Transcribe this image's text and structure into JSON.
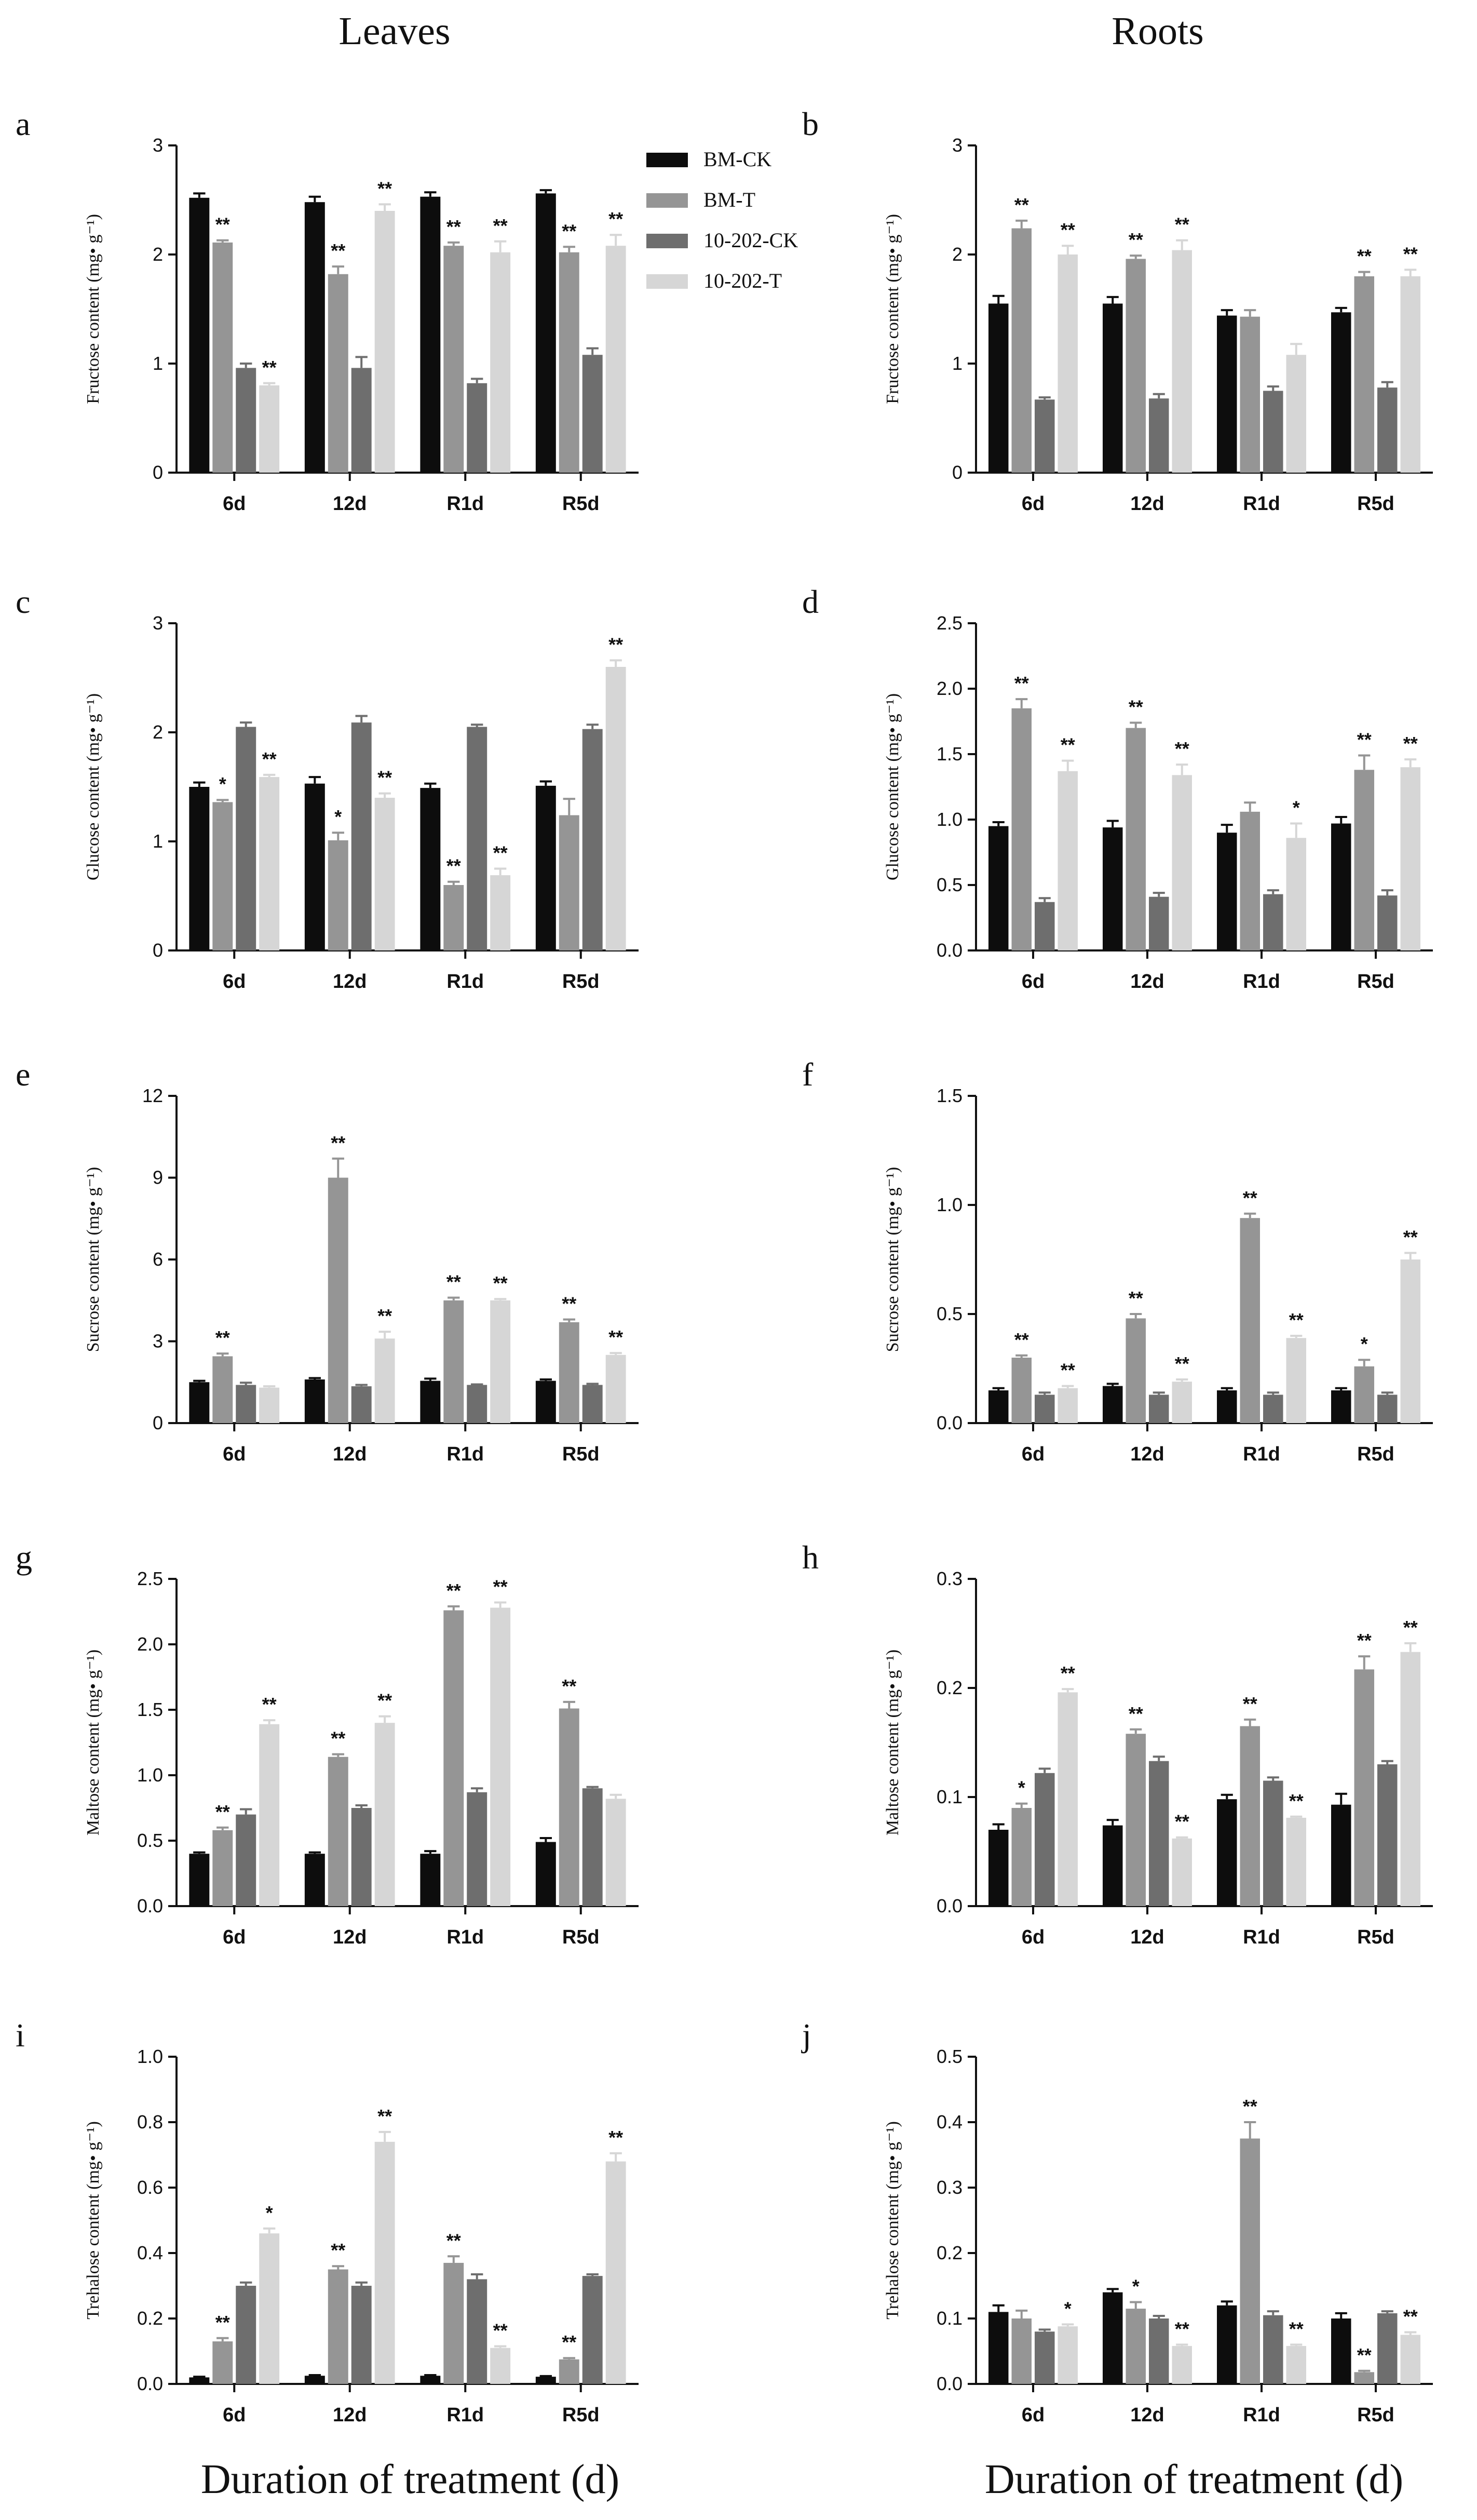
{
  "column_headers": {
    "left": "Leaves",
    "right": "Roots"
  },
  "x_axis_title": "Duration of treatment (d)",
  "colors": {
    "BM-CK": "#0d0d0d",
    "BM-T": "#959595",
    "10-202-CK": "#6e6e6e",
    "10-202-T": "#d6d6d6"
  },
  "chart_data": [
    {
      "panel": "a",
      "type": "bar",
      "organ": "Leaves",
      "ylabel": "Fructose content (mg• g⁻¹)",
      "ylim": [
        0,
        3
      ],
      "yticks": [
        "0",
        "1",
        "2",
        "3"
      ],
      "categories": [
        "6d",
        "12d",
        "R1d",
        "R5d"
      ],
      "legend": [
        "BM-CK",
        "BM-T",
        "10-202-CK",
        "10-202-T"
      ],
      "series": [
        {
          "name": "BM-CK",
          "values": [
            2.52,
            2.48,
            2.53,
            2.56
          ],
          "errors": [
            0.04,
            0.05,
            0.04,
            0.03
          ],
          "sig": [
            "",
            "",
            "",
            ""
          ]
        },
        {
          "name": "BM-T",
          "values": [
            2.11,
            1.82,
            2.08,
            2.02
          ],
          "errors": [
            0.02,
            0.07,
            0.03,
            0.05
          ],
          "sig": [
            "**",
            "**",
            "**",
            "**"
          ]
        },
        {
          "name": "10-202-CK",
          "values": [
            0.96,
            0.96,
            0.82,
            1.08
          ],
          "errors": [
            0.04,
            0.1,
            0.04,
            0.06
          ],
          "sig": [
            "",
            "",
            "",
            ""
          ]
        },
        {
          "name": "10-202-T",
          "values": [
            0.8,
            2.4,
            2.02,
            2.08
          ],
          "errors": [
            0.02,
            0.06,
            0.1,
            0.1
          ],
          "sig": [
            "**",
            "**",
            "**",
            "**"
          ]
        }
      ]
    },
    {
      "panel": "b",
      "type": "bar",
      "organ": "Roots",
      "ylabel": "Fructose content (mg• g⁻¹)",
      "ylim": [
        0,
        3
      ],
      "yticks": [
        "0",
        "1",
        "2",
        "3"
      ],
      "categories": [
        "6d",
        "12d",
        "R1d",
        "R5d"
      ],
      "series": [
        {
          "name": "BM-CK",
          "values": [
            1.55,
            1.55,
            1.44,
            1.47
          ],
          "errors": [
            0.07,
            0.06,
            0.05,
            0.04
          ],
          "sig": [
            "",
            "",
            "",
            ""
          ]
        },
        {
          "name": "BM-T",
          "values": [
            2.24,
            1.96,
            1.43,
            1.8
          ],
          "errors": [
            0.07,
            0.03,
            0.06,
            0.04
          ],
          "sig": [
            "**",
            "**",
            "",
            "**"
          ]
        },
        {
          "name": "10-202-CK",
          "values": [
            0.67,
            0.68,
            0.75,
            0.78
          ],
          "errors": [
            0.02,
            0.04,
            0.04,
            0.05
          ],
          "sig": [
            "",
            "",
            "",
            ""
          ]
        },
        {
          "name": "10-202-T",
          "values": [
            2.0,
            2.04,
            1.08,
            1.8
          ],
          "errors": [
            0.08,
            0.09,
            0.1,
            0.06
          ],
          "sig": [
            "**",
            "**",
            "",
            "**"
          ]
        }
      ]
    },
    {
      "panel": "c",
      "type": "bar",
      "organ": "Leaves",
      "ylabel": "Glucose content (mg• g⁻¹)",
      "ylim": [
        0,
        3
      ],
      "yticks": [
        "0",
        "1",
        "2",
        "3"
      ],
      "categories": [
        "6d",
        "12d",
        "R1d",
        "R5d"
      ],
      "series": [
        {
          "name": "BM-CK",
          "values": [
            1.5,
            1.53,
            1.49,
            1.51
          ],
          "errors": [
            0.04,
            0.06,
            0.04,
            0.04
          ],
          "sig": [
            "",
            "",
            "",
            ""
          ]
        },
        {
          "name": "BM-T",
          "values": [
            1.36,
            1.01,
            0.6,
            1.24
          ],
          "errors": [
            0.02,
            0.07,
            0.03,
            0.15
          ],
          "sig": [
            "*",
            "*",
            "**",
            ""
          ]
        },
        {
          "name": "10-202-CK",
          "values": [
            2.05,
            2.09,
            2.05,
            2.03
          ],
          "errors": [
            0.04,
            0.06,
            0.02,
            0.04
          ],
          "sig": [
            "",
            "",
            "",
            ""
          ]
        },
        {
          "name": "10-202-T",
          "values": [
            1.59,
            1.4,
            0.69,
            2.6
          ],
          "errors": [
            0.02,
            0.04,
            0.06,
            0.06
          ],
          "sig": [
            "**",
            "**",
            "**",
            "**"
          ]
        }
      ]
    },
    {
      "panel": "d",
      "type": "bar",
      "organ": "Roots",
      "ylabel": "Glucose content (mg• g⁻¹)",
      "ylim": [
        0,
        2.5
      ],
      "yticks": [
        "0.0",
        "0.5",
        "1.0",
        "1.5",
        "2.0",
        "2.5"
      ],
      "categories": [
        "6d",
        "12d",
        "R1d",
        "R5d"
      ],
      "series": [
        {
          "name": "BM-CK",
          "values": [
            0.95,
            0.94,
            0.9,
            0.97
          ],
          "errors": [
            0.03,
            0.05,
            0.06,
            0.05
          ],
          "sig": [
            "",
            "",
            "",
            ""
          ]
        },
        {
          "name": "BM-T",
          "values": [
            1.85,
            1.7,
            1.06,
            1.38
          ],
          "errors": [
            0.07,
            0.04,
            0.07,
            0.11
          ],
          "sig": [
            "**",
            "**",
            "",
            "**"
          ]
        },
        {
          "name": "10-202-CK",
          "values": [
            0.37,
            0.41,
            0.43,
            0.42
          ],
          "errors": [
            0.03,
            0.03,
            0.03,
            0.04
          ],
          "sig": [
            "",
            "",
            "",
            ""
          ]
        },
        {
          "name": "10-202-T",
          "values": [
            1.37,
            1.34,
            0.86,
            1.4
          ],
          "errors": [
            0.08,
            0.08,
            0.11,
            0.06
          ],
          "sig": [
            "**",
            "**",
            "*",
            "**"
          ]
        }
      ]
    },
    {
      "panel": "e",
      "type": "bar",
      "organ": "Leaves",
      "ylabel": "Sucrose content (mg• g⁻¹)",
      "ylim": [
        0,
        12
      ],
      "yticks": [
        "0",
        "3",
        "6",
        "9",
        "12"
      ],
      "categories": [
        "6d",
        "12d",
        "R1d",
        "R5d"
      ],
      "series": [
        {
          "name": "BM-CK",
          "values": [
            1.5,
            1.6,
            1.55,
            1.55
          ],
          "errors": [
            0.05,
            0.05,
            0.08,
            0.05
          ],
          "sig": [
            "",
            "",
            "",
            ""
          ]
        },
        {
          "name": "BM-T",
          "values": [
            2.45,
            9.0,
            4.5,
            3.7
          ],
          "errors": [
            0.1,
            0.7,
            0.1,
            0.1
          ],
          "sig": [
            "**",
            "**",
            "**",
            "**"
          ]
        },
        {
          "name": "10-202-CK",
          "values": [
            1.4,
            1.35,
            1.4,
            1.4
          ],
          "errors": [
            0.08,
            0.05,
            0.02,
            0.04
          ],
          "sig": [
            "",
            "",
            "",
            ""
          ]
        },
        {
          "name": "10-202-T",
          "values": [
            1.3,
            3.1,
            4.5,
            2.5
          ],
          "errors": [
            0.05,
            0.25,
            0.05,
            0.07
          ],
          "sig": [
            "",
            "**",
            "**",
            "**"
          ]
        }
      ]
    },
    {
      "panel": "f",
      "type": "bar",
      "organ": "Roots",
      "ylabel": "Sucrose content (mg• g⁻¹)",
      "ylim": [
        0,
        1.5
      ],
      "yticks": [
        "0.0",
        "0.5",
        "1.0",
        "1.5"
      ],
      "categories": [
        "6d",
        "12d",
        "R1d",
        "R5d"
      ],
      "series": [
        {
          "name": "BM-CK",
          "values": [
            0.15,
            0.17,
            0.15,
            0.15
          ],
          "errors": [
            0.01,
            0.01,
            0.01,
            0.01
          ],
          "sig": [
            "",
            "",
            "",
            ""
          ]
        },
        {
          "name": "BM-T",
          "values": [
            0.3,
            0.48,
            0.94,
            0.26
          ],
          "errors": [
            0.01,
            0.02,
            0.02,
            0.03
          ],
          "sig": [
            "**",
            "**",
            "**",
            "*"
          ]
        },
        {
          "name": "10-202-CK",
          "values": [
            0.13,
            0.13,
            0.13,
            0.13
          ],
          "errors": [
            0.01,
            0.01,
            0.01,
            0.01
          ],
          "sig": [
            "",
            "",
            "",
            ""
          ]
        },
        {
          "name": "10-202-T",
          "values": [
            0.16,
            0.19,
            0.39,
            0.75
          ],
          "errors": [
            0.01,
            0.01,
            0.01,
            0.03
          ],
          "sig": [
            "**",
            "**",
            "**",
            "**"
          ]
        }
      ]
    },
    {
      "panel": "g",
      "type": "bar",
      "organ": "Leaves",
      "ylabel": "Maltose content (mg• g⁻¹)",
      "ylim": [
        0,
        2.5
      ],
      "yticks": [
        "0.0",
        "0.5",
        "1.0",
        "1.5",
        "2.0",
        "2.5"
      ],
      "categories": [
        "6d",
        "12d",
        "R1d",
        "R5d"
      ],
      "series": [
        {
          "name": "BM-CK",
          "values": [
            0.4,
            0.4,
            0.4,
            0.49
          ],
          "errors": [
            0.01,
            0.01,
            0.02,
            0.03
          ],
          "sig": [
            "",
            "",
            "",
            ""
          ]
        },
        {
          "name": "BM-T",
          "values": [
            0.58,
            1.14,
            2.26,
            1.51
          ],
          "errors": [
            0.02,
            0.02,
            0.03,
            0.05
          ],
          "sig": [
            "**",
            "**",
            "**",
            "**"
          ]
        },
        {
          "name": "10-202-CK",
          "values": [
            0.7,
            0.75,
            0.87,
            0.9
          ],
          "errors": [
            0.04,
            0.02,
            0.03,
            0.01
          ],
          "sig": [
            "",
            "",
            "",
            ""
          ]
        },
        {
          "name": "10-202-T",
          "values": [
            1.39,
            1.4,
            2.28,
            0.82
          ],
          "errors": [
            0.03,
            0.05,
            0.04,
            0.03
          ],
          "sig": [
            "**",
            "**",
            "**",
            ""
          ]
        }
      ]
    },
    {
      "panel": "h",
      "type": "bar",
      "organ": "Roots",
      "ylabel": "Maltose content (mg• g⁻¹)",
      "ylim": [
        0,
        0.3
      ],
      "yticks": [
        "0.0",
        "0.1",
        "0.2",
        "0.3"
      ],
      "categories": [
        "6d",
        "12d",
        "R1d",
        "R5d"
      ],
      "series": [
        {
          "name": "BM-CK",
          "values": [
            0.07,
            0.074,
            0.098,
            0.093
          ],
          "errors": [
            0.005,
            0.005,
            0.004,
            0.01
          ],
          "sig": [
            "",
            "",
            "",
            ""
          ]
        },
        {
          "name": "BM-T",
          "values": [
            0.09,
            0.158,
            0.165,
            0.217
          ],
          "errors": [
            0.004,
            0.004,
            0.006,
            0.012
          ],
          "sig": [
            "*",
            "**",
            "**",
            "**"
          ]
        },
        {
          "name": "10-202-CK",
          "values": [
            0.122,
            0.133,
            0.115,
            0.13
          ],
          "errors": [
            0.004,
            0.004,
            0.003,
            0.003
          ],
          "sig": [
            "",
            "",
            "",
            ""
          ]
        },
        {
          "name": "10-202-T",
          "values": [
            0.196,
            0.062,
            0.081,
            0.233
          ],
          "errors": [
            0.003,
            0.001,
            0.001,
            0.008
          ],
          "sig": [
            "**",
            "**",
            "**",
            "**"
          ]
        }
      ]
    },
    {
      "panel": "i",
      "type": "bar",
      "organ": "Leaves",
      "ylabel": "Trehalose content (mg• g⁻¹)",
      "ylim": [
        0,
        1.0
      ],
      "yticks": [
        "0.0",
        "0.2",
        "0.4",
        "0.6",
        "0.8",
        "1.0"
      ],
      "categories": [
        "6d",
        "12d",
        "R1d",
        "R5d"
      ],
      "series": [
        {
          "name": "BM-CK",
          "values": [
            0.02,
            0.025,
            0.025,
            0.022
          ],
          "errors": [
            0.002,
            0.002,
            0.002,
            0.002
          ],
          "sig": [
            "",
            "",
            "",
            ""
          ]
        },
        {
          "name": "BM-T",
          "values": [
            0.13,
            0.35,
            0.37,
            0.075
          ],
          "errors": [
            0.01,
            0.01,
            0.02,
            0.004
          ],
          "sig": [
            "**",
            "**",
            "**",
            "**"
          ]
        },
        {
          "name": "10-202-CK",
          "values": [
            0.3,
            0.3,
            0.32,
            0.33
          ],
          "errors": [
            0.01,
            0.01,
            0.015,
            0.005
          ],
          "sig": [
            "",
            "",
            "",
            ""
          ]
        },
        {
          "name": "10-202-T",
          "values": [
            0.46,
            0.74,
            0.11,
            0.68
          ],
          "errors": [
            0.015,
            0.03,
            0.005,
            0.025
          ],
          "sig": [
            "*",
            "**",
            "**",
            "**"
          ]
        }
      ]
    },
    {
      "panel": "j",
      "type": "bar",
      "organ": "Roots",
      "ylabel": "Trehalose content (mg• g⁻¹)",
      "ylim": [
        0,
        0.5
      ],
      "yticks": [
        "0.0",
        "0.1",
        "0.2",
        "0.3",
        "0.4",
        "0.5"
      ],
      "categories": [
        "6d",
        "12d",
        "R1d",
        "R5d"
      ],
      "series": [
        {
          "name": "BM-CK",
          "values": [
            0.11,
            0.14,
            0.12,
            0.1
          ],
          "errors": [
            0.01,
            0.005,
            0.006,
            0.008
          ],
          "sig": [
            "",
            "",
            "",
            ""
          ]
        },
        {
          "name": "BM-T",
          "values": [
            0.1,
            0.115,
            0.375,
            0.018
          ],
          "errors": [
            0.012,
            0.01,
            0.025,
            0.002
          ],
          "sig": [
            "",
            "*",
            "**",
            "**"
          ]
        },
        {
          "name": "10-202-CK",
          "values": [
            0.08,
            0.1,
            0.105,
            0.108
          ],
          "errors": [
            0.003,
            0.004,
            0.006,
            0.003
          ],
          "sig": [
            "",
            "",
            "",
            ""
          ]
        },
        {
          "name": "10-202-T",
          "values": [
            0.088,
            0.058,
            0.058,
            0.075
          ],
          "errors": [
            0.003,
            0.002,
            0.002,
            0.004
          ],
          "sig": [
            "*",
            "**",
            "**",
            "**"
          ]
        }
      ]
    }
  ]
}
